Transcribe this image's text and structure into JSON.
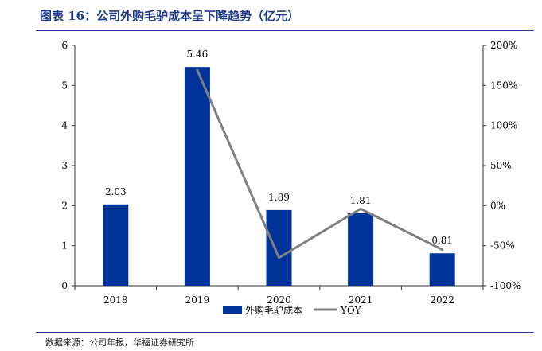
{
  "header": {
    "title": "图表 16：公司外购毛驴成本呈下降趋势（亿元）"
  },
  "footer": {
    "source": "数据来源：公司年报，华福证券研究所"
  },
  "chart_data": {
    "type": "bar",
    "categories": [
      "2018",
      "2019",
      "2020",
      "2021",
      "2022"
    ],
    "series": [
      {
        "name": "外购毛驴成本",
        "type": "bar",
        "axis": "left",
        "values": [
          2.03,
          5.46,
          1.89,
          1.81,
          0.81
        ],
        "labels": [
          "2.03",
          "5.46",
          "1.89",
          "1.81",
          "0.81"
        ],
        "color": "#003399"
      },
      {
        "name": "YOY",
        "type": "line",
        "axis": "right",
        "values": [
          null,
          169,
          -65,
          -4,
          -55
        ],
        "color": "#808080"
      }
    ],
    "left_axis": {
      "ylim": [
        0,
        6
      ],
      "ticks": [
        "0",
        "1",
        "2",
        "3",
        "4",
        "5",
        "6"
      ]
    },
    "right_axis": {
      "ylim": [
        -100,
        200
      ],
      "ticks": [
        "-100%",
        "-50%",
        "0%",
        "50%",
        "100%",
        "150%",
        "200%"
      ]
    },
    "legend": "bottom-center",
    "grid": false
  }
}
